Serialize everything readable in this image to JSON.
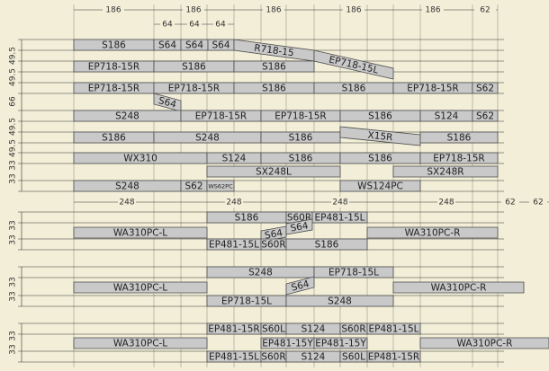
{
  "top_dimensions": [
    "186",
    "186",
    "186",
    "186",
    "186",
    "62"
  ],
  "sub_dimensions": [
    "64",
    "64",
    "64"
  ],
  "mid_dimensions": [
    "248",
    "248",
    "248",
    "248",
    "62",
    "62"
  ],
  "left_dimensions": [
    "49.5",
    "49.5",
    "66",
    "49.5",
    "49.5",
    "33",
    "33",
    "33",
    "33",
    "33",
    "33",
    "33",
    "33"
  ],
  "pieces": [
    "S186",
    "S64",
    "S64",
    "S64",
    "R718-15",
    "EP718-15L",
    "EP718-15R",
    "S186",
    "S186",
    "EP718-15R",
    "EP718-15R",
    "S186",
    "S186",
    "EP718-15R",
    "S62",
    "S64",
    "S248",
    "EP718-15R",
    "EP718-15R",
    "S186",
    "S124",
    "S62",
    "S186",
    "S248",
    "S186",
    "X15R",
    "S186",
    "WX310",
    "S124",
    "S186",
    "S186",
    "EP718-15R",
    "SX248L",
    "SX248R",
    "S248",
    "S62",
    "WS62PC",
    "WS124PC",
    "S186",
    "S60R",
    "EP481-15L",
    "WA310PC-L",
    "S64",
    "S64",
    "WA310PC-R",
    "EP481-15L",
    "S60R",
    "S186",
    "S248",
    "EP718-15L",
    "WA310PC-L",
    "S64",
    "WA310PC-R",
    "EP718-15L",
    "S248",
    "EP481-15R",
    "S60L",
    "S124",
    "S60R",
    "EP481-15L",
    "WA310PC-L",
    "EP481-15Y",
    "EP481-15Y",
    "WA310PC-R",
    "EP481-15L",
    "S60R",
    "S124",
    "S60L",
    "EP481-15R"
  ]
}
